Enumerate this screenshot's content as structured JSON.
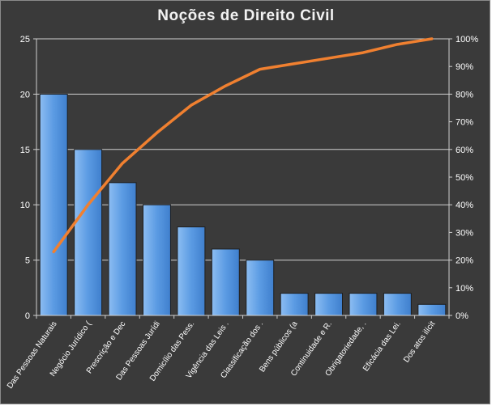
{
  "chart_data": {
    "type": "bar",
    "title": "Noções de Direito  Civil",
    "categories": [
      "Das Pessoas Naturais",
      "Negócio Jurídico (",
      "Prescrição e Dec",
      "Das Pessoas Jurídi",
      "Domicílio das Pess.",
      "Vigência das Leis .",
      "Classificação dos .",
      "Bens públicos (a",
      "Continuidade e R.",
      "Obrigatoriedade, .",
      "Eficácia das Lei.",
      "Dos atos ilícit"
    ],
    "series": [
      {
        "type": "bar",
        "axis": "left",
        "values": [
          20,
          15,
          12,
          10,
          8,
          6,
          5,
          2,
          2,
          2,
          2,
          1
        ]
      },
      {
        "type": "line",
        "axis": "right",
        "values": [
          23,
          40,
          55,
          66,
          76,
          83,
          89,
          91,
          93,
          95,
          98,
          100
        ]
      }
    ],
    "y_left": {
      "min": 0,
      "max": 25,
      "ticks": [
        "0",
        "5",
        "10",
        "15",
        "20",
        "25"
      ]
    },
    "y_right": {
      "min": 0,
      "max": 100,
      "ticks": [
        "0%",
        "10%",
        "20%",
        "30%",
        "40%",
        "50%",
        "60%",
        "70%",
        "80%",
        "90%",
        "100%"
      ]
    },
    "grid": true,
    "legend": "none",
    "colors": {
      "bar": "#4f8fdc",
      "bar_light": "#7fb3ee",
      "line": "#f08030",
      "grid": "#d0d0d0",
      "background": "#3a3a3a"
    }
  }
}
